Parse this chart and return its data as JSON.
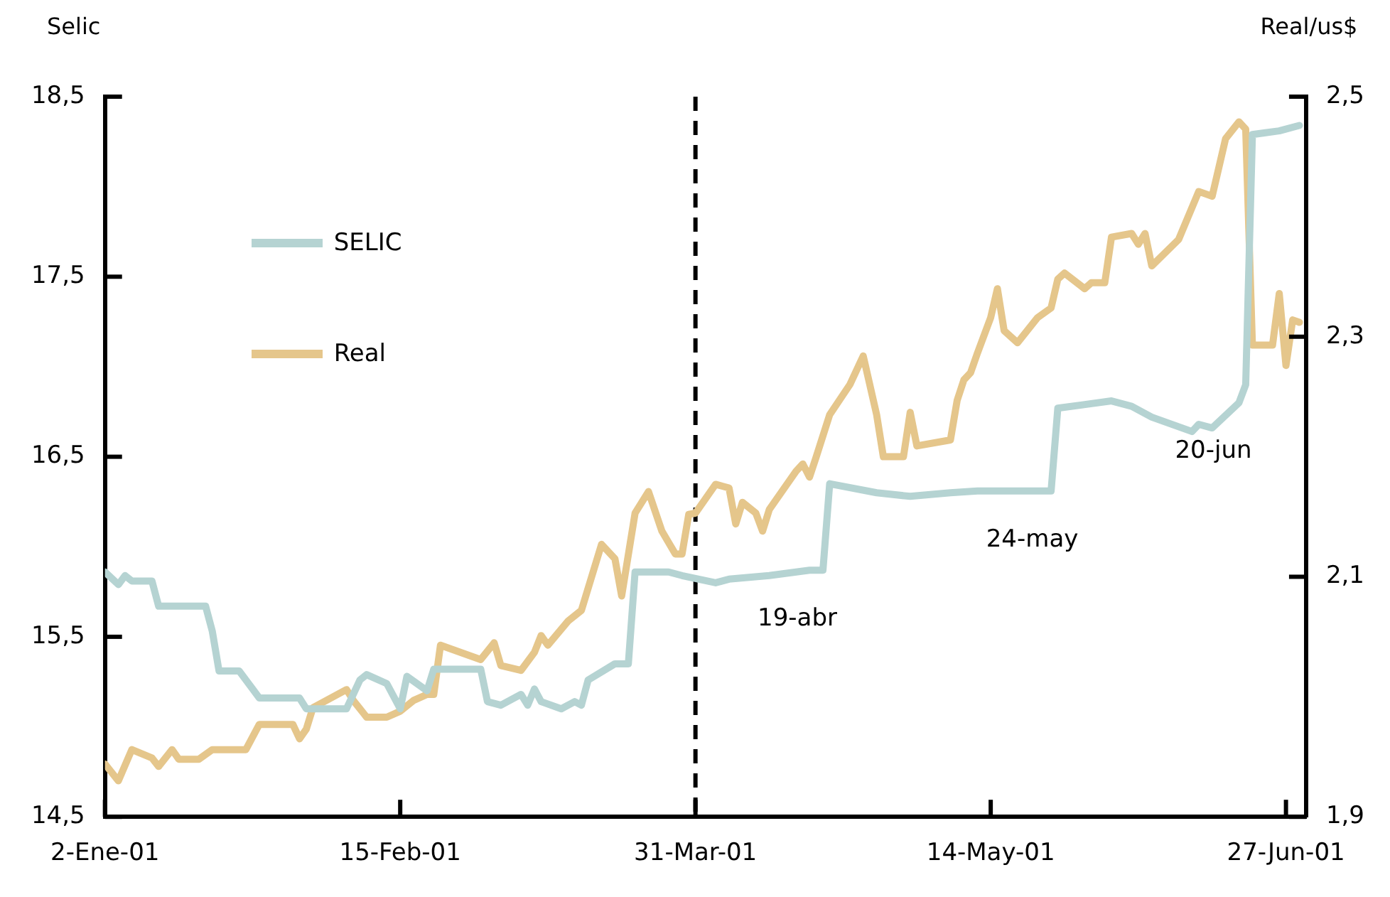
{
  "chart_data": {
    "type": "line",
    "ylabel": "Selic",
    "y2label": "Real/us$",
    "legend": "top left",
    "grid": false,
    "marker": "none",
    "line_style": "solid",
    "xlim": [
      "2001-01-02",
      "2001-06-30"
    ],
    "xticks": [
      {
        "value": "2001-01-02",
        "label": "2-Ene-01"
      },
      {
        "value": "2001-02-15",
        "label": "15-Feb-01"
      },
      {
        "value": "2001-03-31",
        "label": "31-Mar-01"
      },
      {
        "value": "2001-05-14",
        "label": "14-May-01"
      },
      {
        "value": "2001-06-27",
        "label": "27-Jun-01"
      }
    ],
    "ylim": [
      14.5,
      18.5
    ],
    "yticks": [
      {
        "value": 14.5,
        "label": "14,5"
      },
      {
        "value": 15.5,
        "label": "15,5"
      },
      {
        "value": 16.5,
        "label": "16,5"
      },
      {
        "value": 17.5,
        "label": "17,5"
      },
      {
        "value": 18.5,
        "label": "18,5"
      }
    ],
    "y2lim": [
      1.9,
      2.5
    ],
    "y2ticks": [
      {
        "value": 1.9,
        "label": "1,9"
      },
      {
        "value": 2.1,
        "label": "2,1"
      },
      {
        "value": 2.3,
        "label": "2,3"
      },
      {
        "value": 2.5,
        "label": "2,5"
      }
    ],
    "ref_lines": [
      {
        "axis": "x",
        "value": "2001-03-31",
        "line_style": "dashed",
        "color": "#000000"
      }
    ],
    "annotations": [
      {
        "text": "19-abr",
        "x": "2001-04-19",
        "y": 15.87
      },
      {
        "text": "24-may",
        "x": "2001-05-24",
        "y": 16.31
      },
      {
        "text": "20-jun",
        "x": "2001-06-20",
        "y": 16.8
      }
    ],
    "series": [
      {
        "name": "SELIC",
        "color": "#b5d3d2",
        "x": [
          "2001-01-02",
          "2001-01-04",
          "2001-01-05",
          "2001-01-06",
          "2001-01-09",
          "2001-01-10",
          "2001-01-17",
          "2001-01-18",
          "2001-01-19",
          "2001-01-22",
          "2001-01-24",
          "2001-01-25",
          "2001-01-31",
          "2001-02-01",
          "2001-02-07",
          "2001-02-09",
          "2001-02-10",
          "2001-02-13",
          "2001-02-15",
          "2001-02-16",
          "2001-02-19",
          "2001-02-20",
          "2001-02-27",
          "2001-02-28",
          "2001-03-02",
          "2001-03-05",
          "2001-03-06",
          "2001-03-07",
          "2001-03-08",
          "2001-03-11",
          "2001-03-13",
          "2001-03-14",
          "2001-03-15",
          "2001-03-19",
          "2001-03-21",
          "2001-03-22",
          "2001-03-27",
          "2001-03-29",
          "2001-04-03",
          "2001-04-05",
          "2001-04-11",
          "2001-04-17",
          "2001-04-19",
          "2001-04-20",
          "2001-04-27",
          "2001-05-02",
          "2001-05-08",
          "2001-05-12",
          "2001-05-18",
          "2001-05-23",
          "2001-05-24",
          "2001-06-01",
          "2001-06-04",
          "2001-06-07",
          "2001-06-13",
          "2001-06-14",
          "2001-06-16",
          "2001-06-20",
          "2001-06-21",
          "2001-06-22",
          "2001-06-26",
          "2001-06-29"
        ],
        "values": [
          15.86,
          15.79,
          15.84,
          15.81,
          15.81,
          15.67,
          15.67,
          15.53,
          15.31,
          15.31,
          15.21,
          15.16,
          15.16,
          15.1,
          15.1,
          15.26,
          15.29,
          15.24,
          15.1,
          15.28,
          15.2,
          15.32,
          15.32,
          15.14,
          15.12,
          15.18,
          15.12,
          15.21,
          15.14,
          15.1,
          15.14,
          15.12,
          15.26,
          15.35,
          15.35,
          15.86,
          15.86,
          15.84,
          15.8,
          15.82,
          15.84,
          15.87,
          15.87,
          16.35,
          16.3,
          16.28,
          16.3,
          16.31,
          16.31,
          16.31,
          16.77,
          16.81,
          16.78,
          16.72,
          16.64,
          16.68,
          16.66,
          16.8,
          16.9,
          18.29,
          18.31,
          18.34
        ]
      },
      {
        "name": "Real",
        "color": "#e5c68b",
        "axis": "y2",
        "x": [
          "2001-01-02",
          "2001-01-04",
          "2001-01-06",
          "2001-01-09",
          "2001-01-10",
          "2001-01-12",
          "2001-01-13",
          "2001-01-16",
          "2001-01-18",
          "2001-01-23",
          "2001-01-25",
          "2001-01-30",
          "2001-01-31",
          "2001-02-01",
          "2001-02-02",
          "2001-02-07",
          "2001-02-08",
          "2001-02-10",
          "2001-02-13",
          "2001-02-15",
          "2001-02-17",
          "2001-02-19",
          "2001-02-20",
          "2001-02-21",
          "2001-02-27",
          "2001-03-01",
          "2001-03-02",
          "2001-03-05",
          "2001-03-07",
          "2001-03-08",
          "2001-03-09",
          "2001-03-12",
          "2001-03-14",
          "2001-03-17",
          "2001-03-19",
          "2001-03-20",
          "2001-03-22",
          "2001-03-24",
          "2001-03-26",
          "2001-03-28",
          "2001-03-29",
          "2001-03-30",
          "2001-03-31",
          "2001-04-03",
          "2001-04-05",
          "2001-04-06",
          "2001-04-07",
          "2001-04-09",
          "2001-04-10",
          "2001-04-11",
          "2001-04-15",
          "2001-04-16",
          "2001-04-17",
          "2001-04-18",
          "2001-04-20",
          "2001-04-23",
          "2001-04-25",
          "2001-04-27",
          "2001-04-28",
          "2001-05-01",
          "2001-05-02",
          "2001-05-03",
          "2001-05-08",
          "2001-05-09",
          "2001-05-10",
          "2001-05-11",
          "2001-05-12",
          "2001-05-14",
          "2001-05-15",
          "2001-05-16",
          "2001-05-18",
          "2001-05-21",
          "2001-05-23",
          "2001-05-24",
          "2001-05-25",
          "2001-05-28",
          "2001-05-29",
          "2001-05-31",
          "2001-06-01",
          "2001-06-04",
          "2001-06-05",
          "2001-06-06",
          "2001-06-07",
          "2001-06-11",
          "2001-06-14",
          "2001-06-16",
          "2001-06-18",
          "2001-06-20",
          "2001-06-21",
          "2001-06-22",
          "2001-06-25",
          "2001-06-26",
          "2001-06-27",
          "2001-06-28",
          "2001-06-29"
        ],
        "values": [
          1.944,
          1.93,
          1.956,
          1.949,
          1.942,
          1.956,
          1.948,
          1.948,
          1.956,
          1.956,
          1.977,
          1.977,
          1.965,
          1.973,
          1.991,
          2.006,
          1.997,
          1.983,
          1.983,
          1.988,
          1.997,
          2.002,
          2.002,
          2.043,
          2.031,
          2.045,
          2.026,
          2.022,
          2.037,
          2.051,
          2.043,
          2.063,
          2.072,
          2.127,
          2.115,
          2.084,
          2.153,
          2.171,
          2.138,
          2.119,
          2.119,
          2.152,
          2.153,
          2.177,
          2.174,
          2.144,
          2.162,
          2.153,
          2.138,
          2.156,
          2.188,
          2.194,
          2.183,
          2.2,
          2.235,
          2.26,
          2.284,
          2.235,
          2.2,
          2.2,
          2.237,
          2.209,
          2.214,
          2.247,
          2.264,
          2.27,
          2.286,
          2.316,
          2.34,
          2.305,
          2.295,
          2.316,
          2.324,
          2.348,
          2.353,
          2.34,
          2.345,
          2.345,
          2.383,
          2.386,
          2.377,
          2.386,
          2.359,
          2.381,
          2.421,
          2.417,
          2.465,
          2.479,
          2.473,
          2.293,
          2.293,
          2.336,
          2.276,
          2.314,
          2.312
        ]
      }
    ]
  }
}
